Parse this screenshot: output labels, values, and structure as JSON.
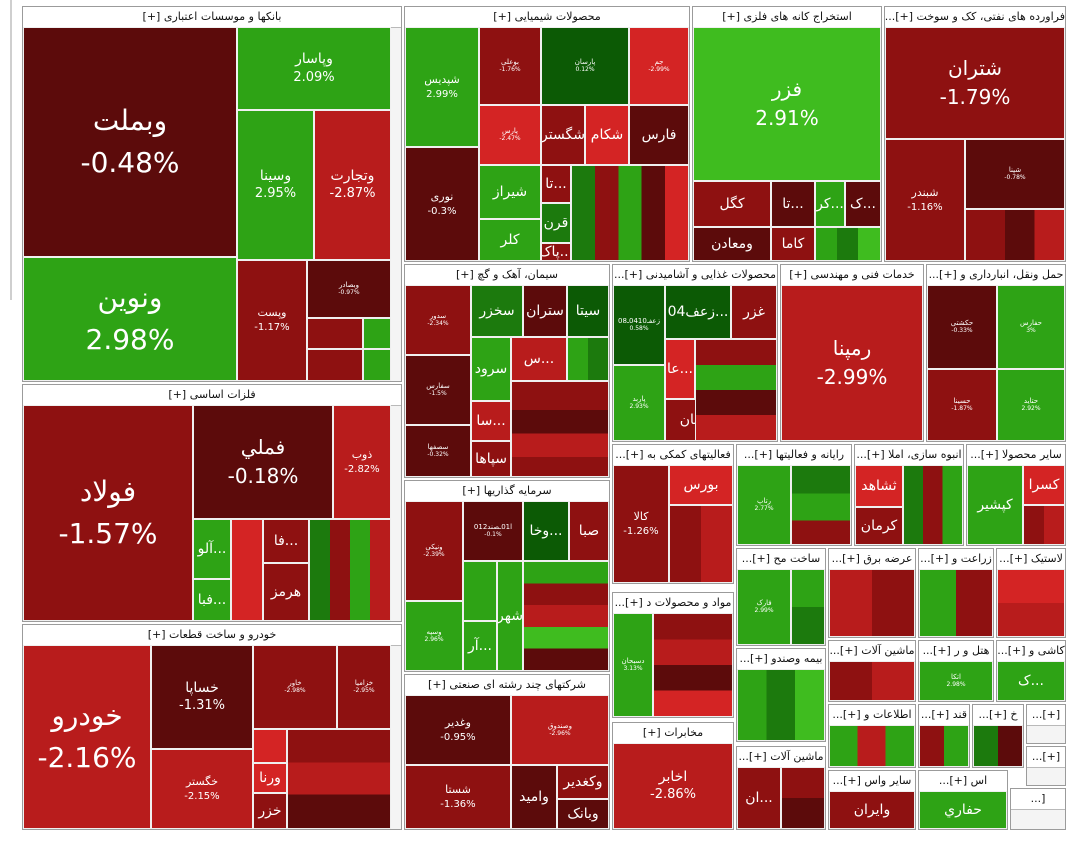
{
  "sectors": {
    "banks": {
      "title": "بانکها و موسسات اعتباری [+]",
      "tiles": [
        {
          "name": "وبملت",
          "pct": "-0.48%",
          "color": "#5c0b0b"
        },
        {
          "name": "ونوین",
          "pct": "2.98%",
          "color": "#2ea315"
        },
        {
          "name": "وپاسار",
          "pct": "2.09%",
          "color": "#2ea315"
        },
        {
          "name": "وسینا",
          "pct": "2.95%",
          "color": "#2ea315"
        },
        {
          "name": "وتجارت",
          "pct": "-2.87%",
          "color": "#b81c1c"
        },
        {
          "name": "وپست",
          "pct": "-1.17%",
          "color": "#8e1111"
        },
        {
          "name": "وبصادر",
          "pct": "-0.97%",
          "color": "#5c0b0b"
        }
      ]
    },
    "chemicals": {
      "title": "محصولات شیمیایی [+]",
      "tiles": [
        {
          "name": "شپدیس",
          "pct": "2.99%"
        },
        {
          "name": "بوعلی",
          "pct": "-1.76%"
        },
        {
          "name": "پارسان",
          "pct": "0.12%"
        },
        {
          "name": "جم",
          "pct": "-2.99%"
        },
        {
          "name": "نوری",
          "pct": "-0.3%"
        },
        {
          "name": "پارس",
          "pct": "-2.47%"
        },
        {
          "name": "شگستر",
          "pct": ""
        },
        {
          "name": "شکام",
          "pct": ""
        },
        {
          "name": "فارس",
          "pct": ""
        },
        {
          "name": "تا...",
          "pct": ""
        },
        {
          "name": "شیراز",
          "pct": ""
        },
        {
          "name": "قرن",
          "pct": ""
        },
        {
          "name": "کلر",
          "pct": ""
        },
        {
          "name": "پاک...",
          "pct": ""
        }
      ]
    },
    "metal_mining": {
      "title": "استخراج کانه های فلزی [+]",
      "tiles": [
        {
          "name": "فزر",
          "pct": "2.91%"
        },
        {
          "name": "کگل",
          "pct": ""
        },
        {
          "name": "تا...",
          "pct": ""
        },
        {
          "name": "کر...",
          "pct": ""
        },
        {
          "name": "ک...",
          "pct": ""
        },
        {
          "name": "ومعادن",
          "pct": ""
        },
        {
          "name": "کاما",
          "pct": ""
        }
      ]
    },
    "oil": {
      "title": "فراورده های نفتی، کک و سوخت [+]...",
      "tiles": [
        {
          "name": "شتران",
          "pct": "-1.79%"
        },
        {
          "name": "شبندر",
          "pct": "-1.16%"
        },
        {
          "name": "شپنا",
          "pct": "-0.78%"
        }
      ]
    },
    "basic_metals": {
      "title": "فلزات اساسی [+]",
      "tiles": [
        {
          "name": "فولاد",
          "pct": "-1.57%"
        },
        {
          "name": "فملي",
          "pct": "-0.18%"
        },
        {
          "name": "ذوب",
          "pct": "-2.82%"
        },
        {
          "name": "آلو...",
          "pct": ""
        },
        {
          "name": "فا...",
          "pct": ""
        },
        {
          "name": "فبا...",
          "pct": ""
        },
        {
          "name": "هرمز",
          "pct": ""
        }
      ]
    },
    "cement": {
      "title": "سیمان، آهک و گچ [+]",
      "tiles": [
        {
          "name": "ستران",
          "pct": ""
        },
        {
          "name": "سخزر",
          "pct": ""
        },
        {
          "name": "سیتا",
          "pct": ""
        },
        {
          "name": "سدور",
          "pct": "-2.34%"
        },
        {
          "name": "سرود",
          "pct": ""
        },
        {
          "name": "س...",
          "pct": ""
        },
        {
          "name": "سفارس",
          "pct": "-1.5%"
        },
        {
          "name": "سا...",
          "pct": ""
        },
        {
          "name": "سصفها",
          "pct": "-0.32%"
        },
        {
          "name": "سپاها",
          "pct": ""
        }
      ]
    },
    "food": {
      "title": "محصولات غذایی و آشامیدنی [+]...",
      "tiles": [
        {
          "name": "زعف04...",
          "pct": ""
        },
        {
          "name": "غزر",
          "pct": ""
        },
        {
          "name": "زعفـ0410ـ08",
          "pct": "0.58%"
        },
        {
          "name": "عا...",
          "pct": ""
        },
        {
          "name": "پاربد",
          "pct": "2.93%"
        },
        {
          "name": "نان",
          "pct": ""
        }
      ]
    },
    "engineering": {
      "title": "خدمات فنی و مهندسی [+]",
      "tiles": [
        {
          "name": "رمپنا",
          "pct": "-2.99%"
        }
      ]
    },
    "transport": {
      "title": "حمل ونقل، انبارداری و [+]...",
      "tiles": [
        {
          "name": "حکشتی",
          "pct": "-0.33%"
        },
        {
          "name": "حفارس",
          "pct": "3%"
        },
        {
          "name": "حسینا",
          "pct": "-1.87%"
        },
        {
          "name": "حتاید",
          "pct": "2.92%"
        }
      ]
    },
    "investment": {
      "title": "سرمایه گذاریها [+]",
      "tiles": [
        {
          "name": "ونیکی",
          "pct": "-2.39%"
        },
        {
          "name": "ا01ـصند012",
          "pct": "-0.1%"
        },
        {
          "name": "وخا...",
          "pct": ""
        },
        {
          "name": "صبا",
          "pct": ""
        },
        {
          "name": "شهر",
          "pct": ""
        },
        {
          "name": "آر...",
          "pct": ""
        },
        {
          "name": "وسپه",
          "pct": "2.96%"
        }
      ]
    },
    "aux_finance": {
      "title": "فعالیتهای کمکی به [+]...",
      "tiles": [
        {
          "name": "بورس",
          "pct": ""
        },
        {
          "name": "کالا",
          "pct": "-1.26%"
        }
      ]
    },
    "computer": {
      "title": "رایانه و فعالیتها [+]...",
      "tiles": [
        {
          "name": "رتاپ",
          "pct": "2.77%"
        }
      ]
    },
    "construction": {
      "title": "انبوه سازی، املا [+]...",
      "tiles": [
        {
          "name": "ثشاهد",
          "pct": ""
        },
        {
          "name": "کرمان",
          "pct": ""
        }
      ]
    },
    "other_products": {
      "title": "سایر محصولا [+]...",
      "tiles": [
        {
          "name": "کسرا",
          "pct": ""
        },
        {
          "name": "کپشیر",
          "pct": ""
        }
      ]
    },
    "auto": {
      "title": "خودرو و ساخت قطعات [+]",
      "tiles": [
        {
          "name": "خودرو",
          "pct": "-2.16%"
        },
        {
          "name": "خساپا",
          "pct": "-1.31%"
        },
        {
          "name": "خاور",
          "pct": "-2.98%"
        },
        {
          "name": "خزامیا",
          "pct": "-2.95%"
        },
        {
          "name": "خگستر",
          "pct": "-2.15%"
        },
        {
          "name": "ورنا",
          "pct": ""
        },
        {
          "name": "خزر",
          "pct": ""
        }
      ]
    },
    "conglomerate": {
      "title": "شرکتهای چند رشته ای صنعتی [+]",
      "tiles": [
        {
          "name": "وغدیر",
          "pct": "-0.95%"
        },
        {
          "name": "وصندوق",
          "pct": "-2.96%"
        },
        {
          "name": "شستا",
          "pct": "-1.36%"
        },
        {
          "name": "وامید",
          "pct": ""
        },
        {
          "name": "وکغدیر",
          "pct": ""
        },
        {
          "name": "وبانک",
          "pct": ""
        }
      ]
    },
    "metal_products": {
      "title": "ساخت مح [+]...",
      "tiles": [
        {
          "name": "فارک",
          "pct": "2.99%"
        }
      ]
    },
    "materials": {
      "title": "مواد و محصولات د [+]...",
      "tiles": [
        {
          "name": "دسبحان",
          "pct": "3.13%"
        }
      ]
    },
    "power": {
      "title": "عرضه برق [+]...",
      "tiles": []
    },
    "agriculture": {
      "title": "زراعت و [+]...",
      "tiles": []
    },
    "plastic": {
      "title": "لاستیک [+]...",
      "tiles": []
    },
    "insurance": {
      "title": "بیمه وصندو [+]...",
      "tiles": []
    },
    "machinery": {
      "title": "ماشین آلات [+]...",
      "tiles": []
    },
    "hotel": {
      "title": "هتل و ر [+]...",
      "tiles": [
        {
          "name": "اتکا",
          "pct": "2.98%"
        }
      ]
    },
    "ceramic": {
      "title": "کاشی و [+]...",
      "tiles": [
        {
          "name": "ک...",
          "pct": ""
        }
      ]
    },
    "telecom": {
      "title": "مخابرات [+]",
      "tiles": [
        {
          "name": "اخابر",
          "pct": "-2.86%"
        }
      ]
    },
    "machinery2": {
      "title": "ماشین آلات [+]...",
      "tiles": [
        {
          "name": "ان...",
          "pct": ""
        }
      ]
    },
    "it": {
      "title": "اطلاعات و [+]...",
      "tiles": []
    },
    "sugar": {
      "title": "قند [+]...",
      "tiles": []
    },
    "vehicles_other": {
      "title": "سایر واس [+]...",
      "tiles": [
        {
          "name": "وایران",
          "pct": ""
        }
      ]
    },
    "extraction_other": {
      "title": "اس [+]...",
      "tiles": [
        {
          "name": "حفاري",
          "pct": ""
        }
      ]
    },
    "retail": {
      "title": "خ [+]...",
      "tiles": []
    },
    "misc1": {
      "title": "[+]...",
      "tiles": []
    },
    "misc2": {
      "title": "[+]...",
      "tiles": []
    },
    "misc3": {
      "title": "[...",
      "tiles": []
    }
  }
}
